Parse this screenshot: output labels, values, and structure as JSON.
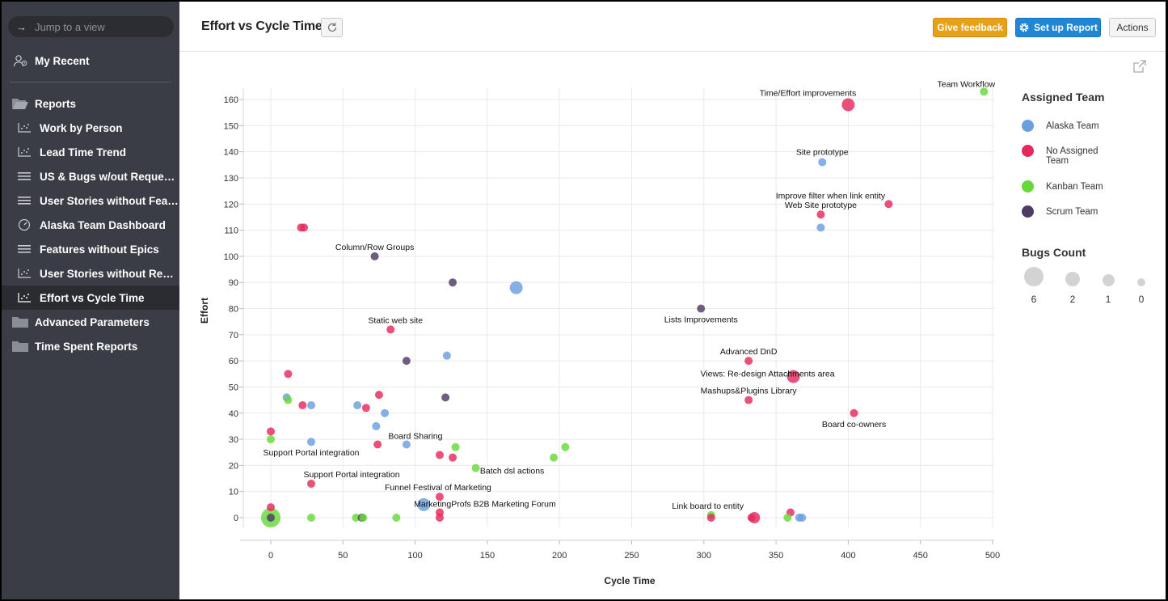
{
  "sidebar": {
    "jump_placeholder": "Jump to a view",
    "my_recent": "My Recent",
    "reports": "Reports",
    "items": [
      {
        "label": "Work by Person",
        "icon": "chart-icon"
      },
      {
        "label": "Lead Time Trend",
        "icon": "chart-icon"
      },
      {
        "label": "US & Bugs w/out Requests",
        "icon": "list-icon"
      },
      {
        "label": "User Stories without Features",
        "icon": "list-icon"
      },
      {
        "label": "Alaska Team Dashboard",
        "icon": "dashboard-icon"
      },
      {
        "label": "Features without Epics",
        "icon": "list-icon"
      },
      {
        "label": "User Stories without Requests",
        "icon": "chart-icon"
      },
      {
        "label": "Effort vs Cycle Time",
        "icon": "chart-icon",
        "active": true
      }
    ],
    "advanced_parameters": "Advanced Parameters",
    "time_spent_reports": "Time Spent Reports"
  },
  "header": {
    "title": "Effort vs Cycle Time",
    "feedback_label": "Give feedback",
    "setup_label": "Set up Report",
    "actions_label": "Actions"
  },
  "colors": {
    "alaska": "#6a9fdf",
    "noteam": "#e5295b",
    "kanban": "#66d93a",
    "scrum": "#4e3c64",
    "feedback": "#e6a117",
    "setup": "#1f87d6"
  },
  "legend": {
    "title": "Assigned Team",
    "items": [
      {
        "key": "alaska",
        "label": "Alaska Team"
      },
      {
        "key": "noteam",
        "label": "No Assigned Team"
      },
      {
        "key": "kanban",
        "label": "Kanban Team"
      },
      {
        "key": "scrum",
        "label": "Scrum Team"
      }
    ],
    "bugs_title": "Bugs Count",
    "bugs_values": [
      "6",
      "2",
      "1",
      "0"
    ]
  },
  "chart_data": {
    "type": "scatter",
    "xlabel": "Cycle Time",
    "ylabel": "Effort",
    "xlim": [
      0,
      500
    ],
    "ylim": [
      0,
      160
    ],
    "xticks": [
      0,
      50,
      100,
      150,
      200,
      250,
      300,
      350,
      400,
      450,
      500
    ],
    "yticks": [
      0,
      10,
      20,
      30,
      40,
      50,
      60,
      70,
      80,
      90,
      100,
      110,
      120,
      130,
      140,
      150,
      160
    ],
    "grid": true,
    "size_legend": "Bugs Count",
    "color_legend": "Assigned Team",
    "points": [
      {
        "x": 494,
        "y": 163,
        "team": "kanban",
        "bugs": 0,
        "label": "Team Workflow"
      },
      {
        "x": 400,
        "y": 158,
        "team": "noteam",
        "bugs": 2,
        "label": "Time/Effort improvements"
      },
      {
        "x": 382,
        "y": 136,
        "team": "alaska",
        "bugs": 0,
        "label": "Site prototype"
      },
      {
        "x": 428,
        "y": 120,
        "team": "noteam",
        "bugs": 0,
        "label": "Improve filter when link entity"
      },
      {
        "x": 381,
        "y": 116,
        "team": "noteam",
        "bugs": 0,
        "label": "Web Site prototype"
      },
      {
        "x": 381,
        "y": 111,
        "team": "alaska",
        "bugs": 0
      },
      {
        "x": 21,
        "y": 111,
        "team": "noteam",
        "bugs": 0
      },
      {
        "x": 23,
        "y": 111,
        "team": "noteam",
        "bugs": 0
      },
      {
        "x": 72,
        "y": 100,
        "team": "scrum",
        "bugs": 0,
        "label": "Column/Row Groups"
      },
      {
        "x": 126,
        "y": 90,
        "team": "scrum",
        "bugs": 0
      },
      {
        "x": 170,
        "y": 88,
        "team": "alaska",
        "bugs": 2
      },
      {
        "x": 298,
        "y": 80,
        "team": "scrum",
        "bugs": 0,
        "label": "Lists Improvements"
      },
      {
        "x": 83,
        "y": 72,
        "team": "noteam",
        "bugs": 0,
        "label": "Static web site"
      },
      {
        "x": 331,
        "y": 60,
        "team": "noteam",
        "bugs": 0,
        "label": "Advanced DnD"
      },
      {
        "x": 122,
        "y": 62,
        "team": "alaska",
        "bugs": 0
      },
      {
        "x": 94,
        "y": 60,
        "team": "scrum",
        "bugs": 0
      },
      {
        "x": 362,
        "y": 54,
        "team": "noteam",
        "bugs": 2,
        "label": "Views: Re-design Attachments area"
      },
      {
        "x": 12,
        "y": 55,
        "team": "noteam",
        "bugs": 0
      },
      {
        "x": 331,
        "y": 45,
        "team": "noteam",
        "bugs": 0,
        "label": "Mashups&Plugins Library"
      },
      {
        "x": 11,
        "y": 46,
        "team": "alaska",
        "bugs": 0
      },
      {
        "x": 12,
        "y": 45,
        "team": "kanban",
        "bugs": 0
      },
      {
        "x": 22,
        "y": 43,
        "team": "noteam",
        "bugs": 0
      },
      {
        "x": 28,
        "y": 43,
        "team": "alaska",
        "bugs": 0
      },
      {
        "x": 60,
        "y": 43,
        "team": "alaska",
        "bugs": 0
      },
      {
        "x": 66,
        "y": 42,
        "team": "noteam",
        "bugs": 0
      },
      {
        "x": 75,
        "y": 47,
        "team": "noteam",
        "bugs": 0
      },
      {
        "x": 79,
        "y": 40,
        "team": "alaska",
        "bugs": 0
      },
      {
        "x": 121,
        "y": 46,
        "team": "scrum",
        "bugs": 0
      },
      {
        "x": 404,
        "y": 40,
        "team": "noteam",
        "bugs": 0,
        "label": "Board co-owners"
      },
      {
        "x": 73,
        "y": 35,
        "team": "alaska",
        "bugs": 0
      },
      {
        "x": 0,
        "y": 33,
        "team": "noteam",
        "bugs": 0
      },
      {
        "x": 0,
        "y": 30,
        "team": "kanban",
        "bugs": 0,
        "label": "Support Portal integration"
      },
      {
        "x": 28,
        "y": 29,
        "team": "alaska",
        "bugs": 0
      },
      {
        "x": 74,
        "y": 28,
        "team": "noteam",
        "bugs": 0
      },
      {
        "x": 94,
        "y": 28,
        "team": "alaska",
        "bugs": 0,
        "label": "Board Sharing"
      },
      {
        "x": 117,
        "y": 24,
        "team": "noteam",
        "bugs": 0
      },
      {
        "x": 128,
        "y": 27,
        "team": "kanban",
        "bugs": 0
      },
      {
        "x": 126,
        "y": 23,
        "team": "noteam",
        "bugs": 0
      },
      {
        "x": 142,
        "y": 19,
        "team": "kanban",
        "bugs": 0,
        "label": "Batch dsl actions"
      },
      {
        "x": 196,
        "y": 23,
        "team": "kanban",
        "bugs": 0
      },
      {
        "x": 204,
        "y": 27,
        "team": "kanban",
        "bugs": 0
      },
      {
        "x": 28,
        "y": 13,
        "team": "noteam",
        "bugs": 0,
        "label": "Support Portal integration"
      },
      {
        "x": 117,
        "y": 8,
        "team": "noteam",
        "bugs": 0,
        "label": "Funnel Festival of Marketing"
      },
      {
        "x": 106,
        "y": 5,
        "team": "alaska",
        "bugs": 2
      },
      {
        "x": 117,
        "y": 2,
        "team": "noteam",
        "bugs": 0,
        "label": "MarketingProfs B2B Marketing Forum"
      },
      {
        "x": 117,
        "y": 0,
        "team": "noteam",
        "bugs": 0
      },
      {
        "x": 0,
        "y": 4,
        "team": "noteam",
        "bugs": 0
      },
      {
        "x": 0,
        "y": 0,
        "team": "kanban",
        "bugs": 6
      },
      {
        "x": 0,
        "y": 0,
        "team": "scrum",
        "bugs": 0
      },
      {
        "x": 28,
        "y": 0,
        "team": "kanban",
        "bugs": 0
      },
      {
        "x": 59,
        "y": 0,
        "team": "kanban",
        "bugs": 0
      },
      {
        "x": 63,
        "y": 0,
        "team": "scrum",
        "bugs": 0
      },
      {
        "x": 64,
        "y": 0,
        "team": "kanban",
        "bugs": 0
      },
      {
        "x": 87,
        "y": 0,
        "team": "kanban",
        "bugs": 0
      },
      {
        "x": 305,
        "y": 1,
        "team": "kanban",
        "bugs": 0,
        "label": "Link board to entity"
      },
      {
        "x": 305,
        "y": 0,
        "team": "noteam",
        "bugs": 0
      },
      {
        "x": 333,
        "y": 0,
        "team": "noteam",
        "bugs": 0
      },
      {
        "x": 335,
        "y": 0,
        "team": "noteam",
        "bugs": 1
      },
      {
        "x": 360,
        "y": 2,
        "team": "noteam",
        "bugs": 0
      },
      {
        "x": 358,
        "y": 0,
        "team": "kanban",
        "bugs": 0
      },
      {
        "x": 366,
        "y": 0,
        "team": "alaska",
        "bugs": 0
      },
      {
        "x": 368,
        "y": 0,
        "team": "alaska",
        "bugs": 0
      }
    ]
  }
}
